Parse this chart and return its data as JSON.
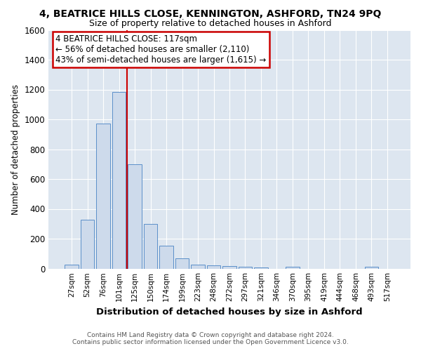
{
  "title": "4, BEATRICE HILLS CLOSE, KENNINGTON, ASHFORD, TN24 9PQ",
  "subtitle": "Size of property relative to detached houses in Ashford",
  "xlabel": "Distribution of detached houses by size in Ashford",
  "ylabel": "Number of detached properties",
  "footer_line1": "Contains HM Land Registry data © Crown copyright and database right 2024.",
  "footer_line2": "Contains public sector information licensed under the Open Government Licence v3.0.",
  "bin_labels": [
    "27sqm",
    "52sqm",
    "76sqm",
    "101sqm",
    "125sqm",
    "150sqm",
    "174sqm",
    "199sqm",
    "223sqm",
    "248sqm",
    "272sqm",
    "297sqm",
    "321sqm",
    "346sqm",
    "370sqm",
    "395sqm",
    "419sqm",
    "444sqm",
    "468sqm",
    "493sqm",
    "517sqm"
  ],
  "bar_heights": [
    25,
    325,
    970,
    1185,
    700,
    300,
    155,
    68,
    28,
    20,
    15,
    10,
    8,
    0,
    10,
    0,
    0,
    0,
    0,
    12,
    0
  ],
  "bar_color": "#cddaeb",
  "bar_edge_color": "#5b8fc9",
  "background_color": "#dde6f0",
  "grid_color": "#ffffff",
  "vline_color": "#cc0000",
  "annotation_text": "4 BEATRICE HILLS CLOSE: 117sqm\n← 56% of detached houses are smaller (2,110)\n43% of semi-detached houses are larger (1,615) →",
  "annotation_box_color": "#ffffff",
  "annotation_box_edge_color": "#cc0000",
  "ylim": [
    0,
    1600
  ],
  "yticks": [
    0,
    200,
    400,
    600,
    800,
    1000,
    1200,
    1400,
    1600
  ]
}
